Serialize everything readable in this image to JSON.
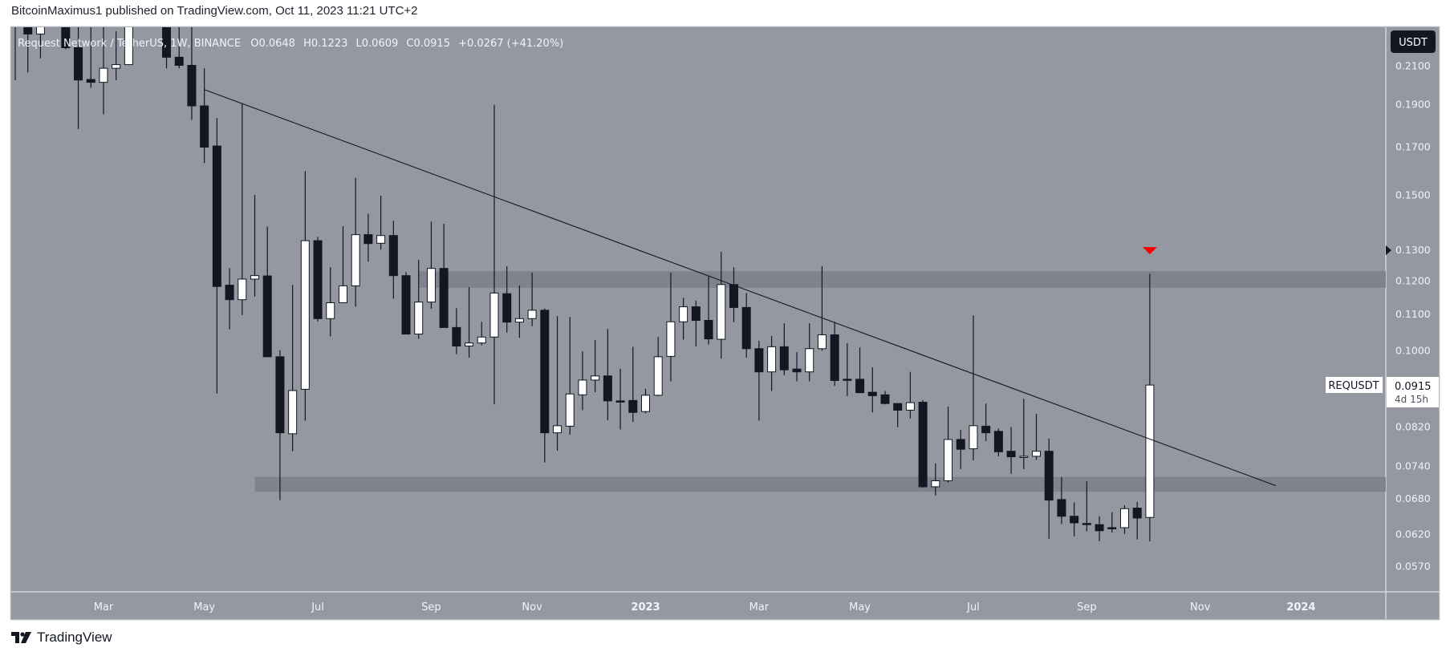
{
  "header": {
    "publish_line": "BitcoinMaximus1 published on TradingView.com, Oct 11, 2023 11:21 UTC+2"
  },
  "footer": {
    "brand": "TradingView",
    "logo_icon": "tradingview-logo-icon"
  },
  "colors": {
    "plot_bg": "#9598a1",
    "bear": "#131722",
    "bull": "#ffffff",
    "zone": "#80838d",
    "marker": "#ff0000",
    "text": "#f0f3fa"
  },
  "chart_data": {
    "type": "candlestick",
    "legend": {
      "symbol": "Request Network / TetherUS, 1W, BINANCE",
      "o_label": "O",
      "o": "0.0648",
      "h_label": "H",
      "h": "0.1223",
      "l_label": "L",
      "l": "0.0609",
      "c_label": "C",
      "c": "0.0915",
      "change": "+0.0267 (+41.20%)"
    },
    "y_scale": "log",
    "currency_button": "USDT",
    "y_ticks": [
      "0.2100",
      "0.1900",
      "0.1700",
      "0.1500",
      "0.1300",
      "0.1200",
      "0.1100",
      "0.1000",
      "0.0820",
      "0.0740",
      "0.0680",
      "0.0620",
      "0.0570"
    ],
    "x_ticks": [
      {
        "label": "Mar",
        "date": "2022-03-07"
      },
      {
        "label": "May",
        "date": "2022-05-02"
      },
      {
        "label": "Jul",
        "date": "2022-07-04"
      },
      {
        "label": "Sep",
        "date": "2022-09-05"
      },
      {
        "label": "Nov",
        "date": "2022-10-31"
      },
      {
        "label": "2023",
        "date": "2023-01-02",
        "year": true
      },
      {
        "label": "Mar",
        "date": "2023-03-06"
      },
      {
        "label": "May",
        "date": "2023-05-01"
      },
      {
        "label": "Jul",
        "date": "2023-07-03"
      },
      {
        "label": "Sep",
        "date": "2023-09-04"
      },
      {
        "label": "Nov",
        "date": "2023-11-06"
      },
      {
        "label": "2024",
        "date": "2024-01-01",
        "year": true
      }
    ],
    "price_label": {
      "symbol": "REQUSDT",
      "value": "0.0915",
      "countdown": "4d 15h"
    },
    "axis_marker_price": 0.13,
    "candles_columns": [
      "date",
      "open",
      "high",
      "low",
      "close"
    ],
    "candles": [
      [
        "2022-01-17",
        0.26,
        0.28,
        0.2025,
        0.25
      ],
      [
        "2022-01-24",
        0.24,
        0.25,
        0.2067,
        0.2284
      ],
      [
        "2022-01-31",
        0.2284,
        0.25,
        0.2144,
        0.24
      ],
      [
        "2022-02-07",
        0.25,
        0.29,
        0.24,
        0.27
      ],
      [
        "2022-02-14",
        0.26,
        0.27,
        0.2195,
        0.2204
      ],
      [
        "2022-02-21",
        0.2204,
        0.24,
        0.1783,
        0.2026
      ],
      [
        "2022-02-28",
        0.2029,
        0.24,
        0.1985,
        0.2014
      ],
      [
        "2022-03-07",
        0.2014,
        0.24,
        0.1853,
        0.2089
      ],
      [
        "2022-03-14",
        0.2089,
        0.23,
        0.2025,
        0.2109
      ],
      [
        "2022-03-21",
        0.2109,
        0.25,
        0.2109,
        0.235
      ],
      [
        "2022-03-28",
        0.25,
        0.27,
        0.24,
        0.26
      ],
      [
        "2022-04-04",
        0.26,
        0.27,
        0.24,
        0.25
      ],
      [
        "2022-04-11",
        0.25,
        0.27,
        0.2089,
        0.215
      ],
      [
        "2022-04-18",
        0.215,
        0.235,
        0.2089,
        0.2105
      ],
      [
        "2022-04-25",
        0.2105,
        0.235,
        0.1826,
        0.1894
      ],
      [
        "2022-05-02",
        0.1894,
        0.2089,
        0.1632,
        0.1701
      ],
      [
        "2022-05-09",
        0.1706,
        0.1835,
        0.0895,
        0.1183
      ],
      [
        "2022-05-16",
        0.1187,
        0.1241,
        0.1058,
        0.1143
      ],
      [
        "2022-05-23",
        0.1143,
        0.1907,
        0.1098,
        0.1206
      ],
      [
        "2022-05-30",
        0.1206,
        0.1502,
        0.1152,
        0.1217
      ],
      [
        "2022-06-06",
        0.1216,
        0.1383,
        0.0985,
        0.0985
      ],
      [
        "2022-06-13",
        0.0985,
        0.1002,
        0.0678,
        0.0808
      ],
      [
        "2022-06-20",
        0.0806,
        0.1188,
        0.077,
        0.0902
      ],
      [
        "2022-06-27",
        0.0905,
        0.1598,
        0.0834,
        0.1333
      ],
      [
        "2022-07-04",
        0.1333,
        0.1346,
        0.108,
        0.1088
      ],
      [
        "2022-07-11",
        0.1088,
        0.1244,
        0.1039,
        0.1134
      ],
      [
        "2022-07-18",
        0.1134,
        0.1384,
        0.1134,
        0.1185
      ],
      [
        "2022-07-25",
        0.1185,
        0.157,
        0.1122,
        0.1354
      ],
      [
        "2022-08-01",
        0.1354,
        0.143,
        0.1262,
        0.1323
      ],
      [
        "2022-08-08",
        0.1324,
        0.1499,
        0.1302,
        0.1351
      ],
      [
        "2022-08-15",
        0.1351,
        0.1404,
        0.1146,
        0.1217
      ],
      [
        "2022-08-22",
        0.1217,
        0.1228,
        0.1045,
        0.1045
      ],
      [
        "2022-08-29",
        0.1045,
        0.1268,
        0.1032,
        0.1136
      ],
      [
        "2022-09-05",
        0.1136,
        0.1401,
        0.1116,
        0.124
      ],
      [
        "2022-09-12",
        0.124,
        0.1393,
        0.1063,
        0.1063
      ],
      [
        "2022-09-19",
        0.1063,
        0.1118,
        0.0992,
        0.1013
      ],
      [
        "2022-09-26",
        0.1013,
        0.1181,
        0.0983,
        0.1021
      ],
      [
        "2022-10-03",
        0.1021,
        0.1079,
        0.1015,
        0.1037
      ],
      [
        "2022-10-10",
        0.1037,
        0.1898,
        0.087,
        0.1163
      ],
      [
        "2022-10-17",
        0.1161,
        0.1247,
        0.1049,
        0.1078
      ],
      [
        "2022-10-24",
        0.1078,
        0.1186,
        0.1035,
        0.1088
      ],
      [
        "2022-10-31",
        0.1088,
        0.1226,
        0.1067,
        0.1112
      ],
      [
        "2022-11-07",
        0.1112,
        0.1117,
        0.0748,
        0.0808
      ],
      [
        "2022-11-14",
        0.0808,
        0.1095,
        0.0771,
        0.0823
      ],
      [
        "2022-11-21",
        0.0822,
        0.1093,
        0.0804,
        0.0894
      ],
      [
        "2022-11-28",
        0.0892,
        0.0999,
        0.0857,
        0.0927
      ],
      [
        "2022-12-05",
        0.0927,
        0.1029,
        0.0898,
        0.0937
      ],
      [
        "2022-12-12",
        0.0937,
        0.1059,
        0.0835,
        0.0878
      ],
      [
        "2022-12-19",
        0.0878,
        0.0955,
        0.0815,
        0.0877
      ],
      [
        "2022-12-26",
        0.0879,
        0.1011,
        0.0831,
        0.0852
      ],
      [
        "2023-01-02",
        0.0854,
        0.0906,
        0.085,
        0.0891
      ],
      [
        "2023-01-09",
        0.0891,
        0.1037,
        0.0889,
        0.0985
      ],
      [
        "2023-01-16",
        0.0986,
        0.1226,
        0.0924,
        0.1079
      ],
      [
        "2023-01-23",
        0.1079,
        0.1149,
        0.103,
        0.1122
      ],
      [
        "2023-01-30",
        0.1122,
        0.114,
        0.1012,
        0.1083
      ],
      [
        "2023-02-06",
        0.1083,
        0.1215,
        0.1017,
        0.1032
      ],
      [
        "2023-02-13",
        0.1031,
        0.1295,
        0.098,
        0.1189
      ],
      [
        "2023-02-20",
        0.1189,
        0.1244,
        0.1078,
        0.112
      ],
      [
        "2023-02-27",
        0.112,
        0.1163,
        0.0983,
        0.1006
      ],
      [
        "2023-03-06",
        0.1006,
        0.1027,
        0.0834,
        0.0947
      ],
      [
        "2023-03-13",
        0.0947,
        0.104,
        0.0901,
        0.1011
      ],
      [
        "2023-03-20",
        0.1011,
        0.1075,
        0.0939,
        0.0952
      ],
      [
        "2023-03-27",
        0.0954,
        0.0997,
        0.0924,
        0.0947
      ],
      [
        "2023-04-03",
        0.0947,
        0.1075,
        0.0924,
        0.1006
      ],
      [
        "2023-04-10",
        0.1006,
        0.1247,
        0.1001,
        0.1043
      ],
      [
        "2023-04-17",
        0.1043,
        0.1079,
        0.0913,
        0.0926
      ],
      [
        "2023-04-24",
        0.0929,
        0.102,
        0.0889,
        0.0928
      ],
      [
        "2023-05-01",
        0.0929,
        0.1009,
        0.0897,
        0.0897
      ],
      [
        "2023-05-08",
        0.0898,
        0.0958,
        0.0852,
        0.089
      ],
      [
        "2023-05-15",
        0.0892,
        0.0901,
        0.087,
        0.0872
      ],
      [
        "2023-05-22",
        0.0872,
        0.0872,
        0.082,
        0.0857
      ],
      [
        "2023-05-29",
        0.0857,
        0.0947,
        0.0839,
        0.0874
      ],
      [
        "2023-06-05",
        0.0875,
        0.088,
        0.07,
        0.0702
      ],
      [
        "2023-06-12",
        0.0702,
        0.0746,
        0.0686,
        0.0713
      ],
      [
        "2023-06-19",
        0.0713,
        0.0865,
        0.071,
        0.0794
      ],
      [
        "2023-06-26",
        0.0794,
        0.0814,
        0.0735,
        0.0774
      ],
      [
        "2023-07-03",
        0.0775,
        0.1097,
        0.0752,
        0.0823
      ],
      [
        "2023-07-10",
        0.0822,
        0.0872,
        0.0791,
        0.0808
      ],
      [
        "2023-07-17",
        0.0811,
        0.0817,
        0.076,
        0.0769
      ],
      [
        "2023-07-24",
        0.077,
        0.082,
        0.0726,
        0.0759
      ],
      [
        "2023-07-31",
        0.076,
        0.0883,
        0.0735,
        0.076
      ],
      [
        "2023-08-07",
        0.076,
        0.0849,
        0.0753,
        0.077
      ],
      [
        "2023-08-14",
        0.077,
        0.0796,
        0.0613,
        0.0678
      ],
      [
        "2023-08-21",
        0.0679,
        0.072,
        0.0637,
        0.065
      ],
      [
        "2023-08-28",
        0.065,
        0.0674,
        0.0617,
        0.0639
      ],
      [
        "2023-09-04",
        0.0638,
        0.0712,
        0.0625,
        0.0637
      ],
      [
        "2023-09-11",
        0.0636,
        0.065,
        0.0609,
        0.0626
      ],
      [
        "2023-09-18",
        0.0631,
        0.0657,
        0.0623,
        0.063
      ],
      [
        "2023-09-25",
        0.0631,
        0.0669,
        0.0621,
        0.0663
      ],
      [
        "2023-10-02",
        0.0664,
        0.0675,
        0.0612,
        0.0647
      ],
      [
        "2023-10-09",
        0.0648,
        0.1223,
        0.0609,
        0.0915
      ]
    ],
    "trendline": [
      {
        "date": "2022-05-02",
        "price": 0.1976
      },
      {
        "date": "2023-12-18",
        "price": 0.0704
      }
    ],
    "zones": [
      {
        "from": "2022-08-29",
        "top": 0.1231,
        "bottom": 0.1179
      },
      {
        "from": "2022-05-30",
        "top": 0.072,
        "bottom": 0.0693
      }
    ],
    "marker": {
      "date": "2023-10-09",
      "price": 0.13,
      "shape": "triangle-down"
    }
  }
}
